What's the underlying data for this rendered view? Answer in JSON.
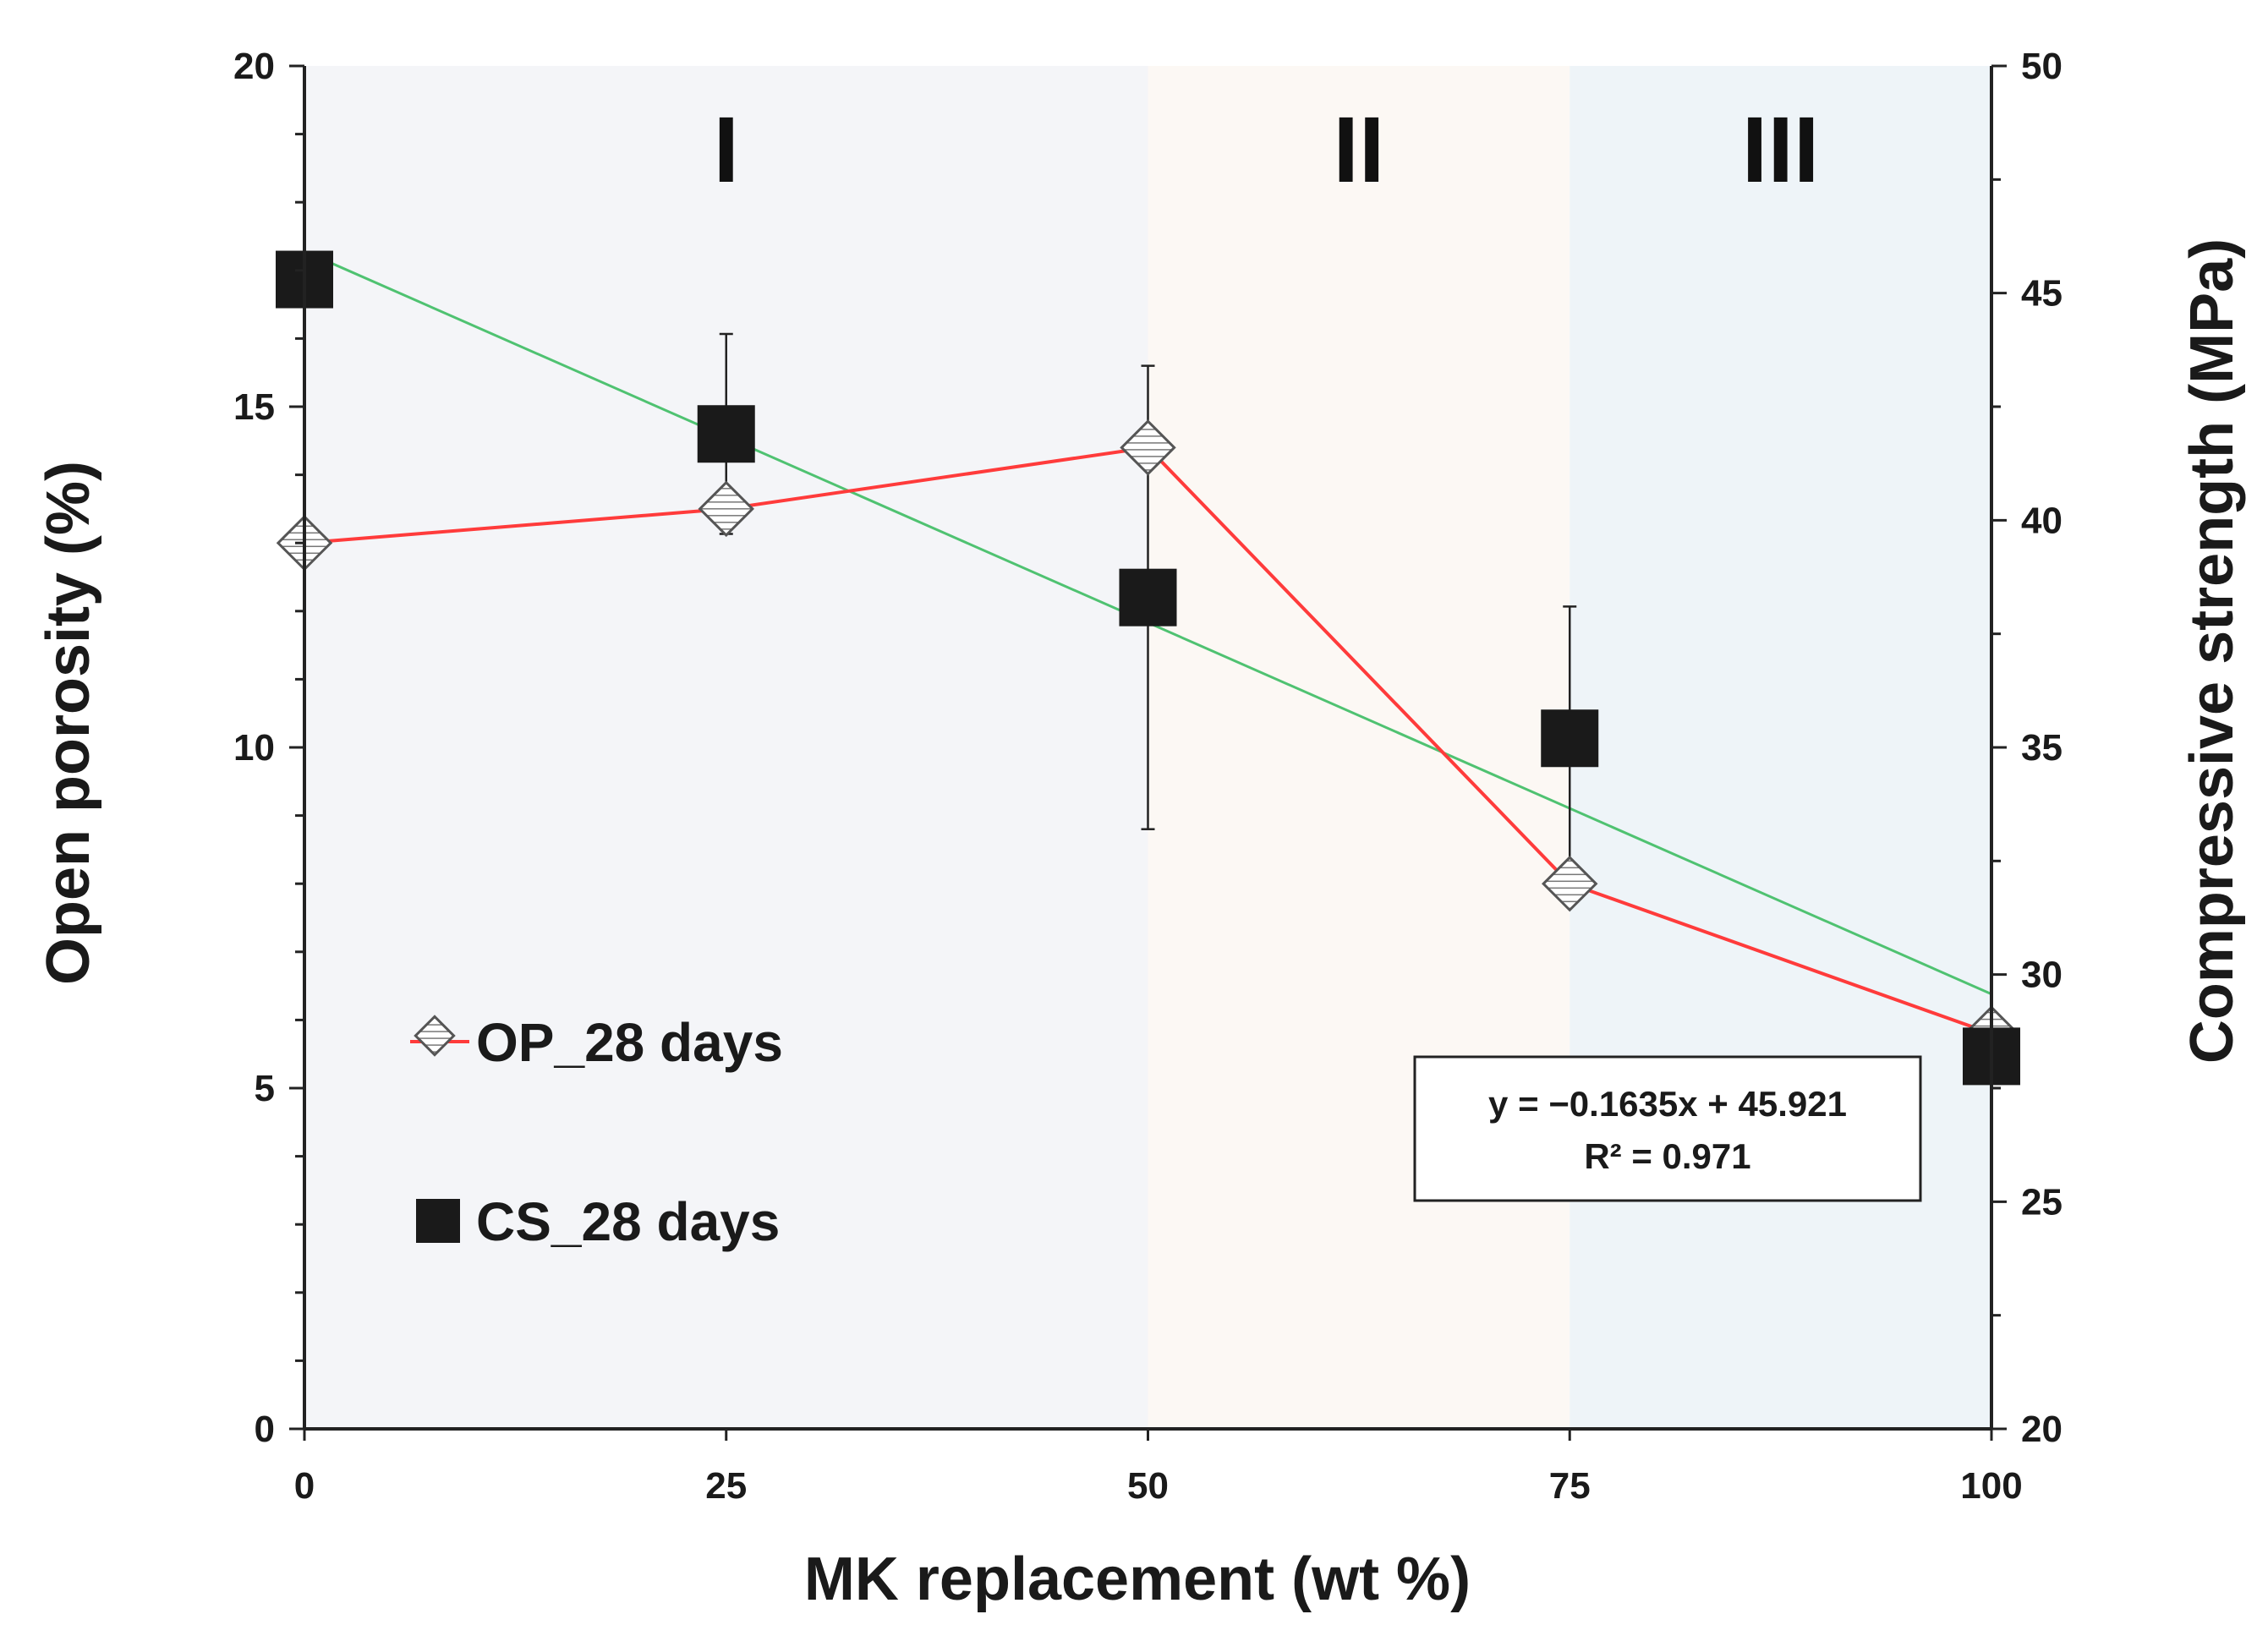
{
  "chart_data": {
    "type": "line",
    "x": [
      0,
      25,
      50,
      75,
      100
    ],
    "xlabel": "MK replacement (wt %)",
    "xlim": [
      0,
      100
    ],
    "x_ticks": [
      "0",
      "25",
      "50",
      "75",
      "100"
    ],
    "ylabel_left": "Open porosity (%)",
    "ylim_left": [
      0,
      20
    ],
    "y_ticks_left": [
      "0",
      "5",
      "10",
      "15",
      "20"
    ],
    "ylabel_right": "Compressive strength (MPa)",
    "ylim_right": [
      20,
      50
    ],
    "y_ticks_right": [
      "20",
      "25",
      "30",
      "35",
      "40",
      "45",
      "50"
    ],
    "regions": [
      {
        "label": "I",
        "from": 0,
        "to": 50,
        "color": "#f4f5f8"
      },
      {
        "label": "II",
        "from": 50,
        "to": 75,
        "color": "#fcf8f4"
      },
      {
        "label": "III",
        "from": 75,
        "to": 100,
        "color": "#eef4f8"
      }
    ],
    "series": [
      {
        "name": "OP_28 days",
        "axis": "left",
        "marker": "diamond",
        "line_color": "#ff3b3b",
        "values": [
          13.0,
          13.5,
          14.4,
          8.0,
          5.8
        ]
      },
      {
        "name": "CS_28 days",
        "axis": "right",
        "marker": "square",
        "color": "#1a1a1a",
        "values": [
          45.3,
          41.9,
          38.3,
          35.2,
          28.2
        ],
        "error": [
          0,
          2.2,
          5.1,
          2.9,
          0
        ]
      }
    ],
    "trendline": {
      "series": "CS_28 days",
      "color": "#4fc271",
      "slope": -0.1635,
      "intercept": 45.921,
      "equation": "y = −0.1635x + 45.921",
      "r2": "R² = 0.971"
    }
  }
}
